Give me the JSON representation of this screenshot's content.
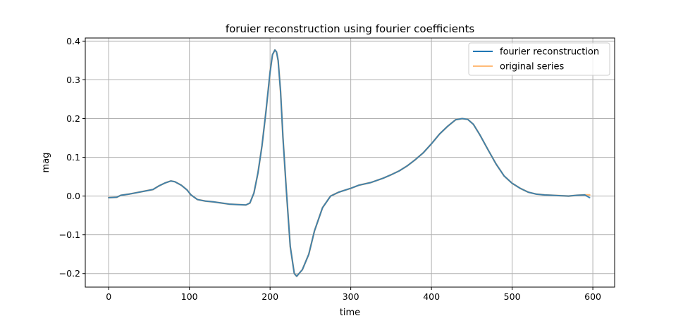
{
  "chart_data": {
    "type": "line",
    "title": "foruier reconstruction using fourier coefficients",
    "xlabel": "time",
    "ylabel": "mag",
    "xlim": [
      -29,
      627
    ],
    "ylim": [
      -0.235,
      0.408
    ],
    "xticks": [
      0,
      100,
      200,
      300,
      400,
      500,
      600
    ],
    "xtick_labels": [
      "0",
      "100",
      "200",
      "300",
      "400",
      "500",
      "600"
    ],
    "yticks": [
      -0.2,
      -0.1,
      0.0,
      0.1,
      0.2,
      0.3,
      0.4
    ],
    "ytick_labels": [
      "−0.2",
      "−0.1",
      "0.0",
      "0.1",
      "0.2",
      "0.3",
      "0.4"
    ],
    "grid": true,
    "legend_position": "top-right",
    "x": [
      0,
      10,
      15,
      25,
      35,
      45,
      55,
      62,
      70,
      77,
      82,
      90,
      97,
      102,
      110,
      120,
      130,
      140,
      150,
      160,
      170,
      175,
      180,
      185,
      190,
      195,
      200,
      203,
      206,
      208,
      210,
      213,
      216,
      220,
      225,
      230,
      233,
      240,
      248,
      255,
      265,
      275,
      285,
      300,
      310,
      325,
      340,
      350,
      360,
      370,
      380,
      390,
      400,
      410,
      420,
      430,
      438,
      445,
      452,
      460,
      470,
      480,
      490,
      500,
      510,
      520,
      530,
      540,
      550,
      560,
      570,
      580,
      590,
      596
    ],
    "series": [
      {
        "name": "fourier reconstruction",
        "color": "#1f77b4",
        "values": [
          -0.004,
          -0.003,
          0.002,
          0.005,
          0.009,
          0.013,
          0.017,
          0.026,
          0.034,
          0.039,
          0.037,
          0.028,
          0.016,
          0.003,
          -0.009,
          -0.013,
          -0.015,
          -0.018,
          -0.021,
          -0.022,
          -0.023,
          -0.018,
          0.008,
          0.06,
          0.13,
          0.22,
          0.32,
          0.365,
          0.377,
          0.372,
          0.35,
          0.27,
          0.15,
          0.02,
          -0.13,
          -0.2,
          -0.207,
          -0.19,
          -0.15,
          -0.09,
          -0.03,
          0.0,
          0.01,
          0.02,
          0.028,
          0.035,
          0.046,
          0.055,
          0.065,
          0.078,
          0.094,
          0.112,
          0.135,
          0.16,
          0.18,
          0.197,
          0.2,
          0.198,
          0.185,
          0.158,
          0.12,
          0.083,
          0.052,
          0.033,
          0.02,
          0.01,
          0.005,
          0.003,
          0.002,
          0.001,
          0.0,
          0.002,
          0.003,
          -0.004
        ]
      },
      {
        "name": "original series",
        "color": "#ffbb78",
        "values": [
          -0.004,
          -0.003,
          0.002,
          0.005,
          0.009,
          0.013,
          0.017,
          0.026,
          0.034,
          0.039,
          0.037,
          0.028,
          0.016,
          0.003,
          -0.009,
          -0.013,
          -0.015,
          -0.018,
          -0.021,
          -0.022,
          -0.023,
          -0.018,
          0.008,
          0.06,
          0.13,
          0.22,
          0.32,
          0.365,
          0.377,
          0.372,
          0.35,
          0.27,
          0.15,
          0.02,
          -0.13,
          -0.2,
          -0.207,
          -0.19,
          -0.15,
          -0.09,
          -0.03,
          0.0,
          0.01,
          0.02,
          0.028,
          0.035,
          0.046,
          0.055,
          0.065,
          0.078,
          0.094,
          0.112,
          0.135,
          0.16,
          0.18,
          0.197,
          0.2,
          0.198,
          0.185,
          0.158,
          0.12,
          0.083,
          0.052,
          0.033,
          0.02,
          0.01,
          0.005,
          0.003,
          0.002,
          0.001,
          0.0,
          0.002,
          0.003,
          0.003
        ]
      }
    ]
  }
}
